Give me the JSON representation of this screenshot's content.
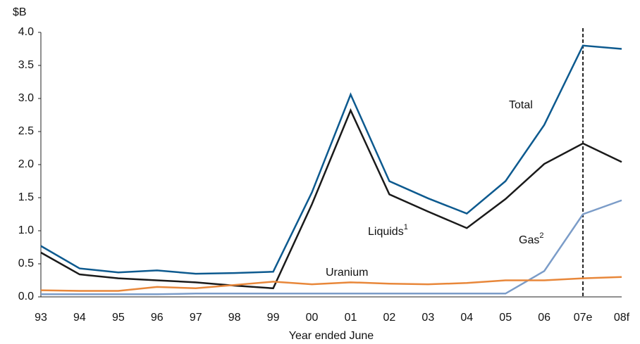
{
  "chart_data": {
    "type": "line",
    "y_unit_label": "$B",
    "x_label": "Year ended June",
    "categories": [
      "93",
      "94",
      "95",
      "96",
      "97",
      "98",
      "99",
      "00",
      "01",
      "02",
      "03",
      "04",
      "05",
      "06",
      "07e",
      "08f"
    ],
    "ylim": [
      0,
      4
    ],
    "yticks": [
      {
        "value": 0,
        "label": "0.0"
      },
      0.5,
      {
        "value": 1,
        "label": "1.0"
      },
      1.5,
      {
        "value": 2,
        "label": "2.0"
      },
      2.5,
      {
        "value": 3,
        "label": "3.0"
      },
      3.5,
      {
        "value": 4,
        "label": "4.0"
      }
    ],
    "vline_category": "07e",
    "series": [
      {
        "name": "Total",
        "color": "#0d5a8f",
        "values": [
          0.77,
          0.43,
          0.37,
          0.4,
          0.35,
          0.36,
          0.38,
          1.58,
          3.06,
          1.75,
          1.49,
          1.26,
          1.75,
          2.6,
          3.8,
          3.75
        ]
      },
      {
        "name": "Liquids",
        "footnote": "1",
        "color": "#1a1a1a",
        "values": [
          0.67,
          0.34,
          0.28,
          0.25,
          0.22,
          0.17,
          0.13,
          1.4,
          2.82,
          1.55,
          1.29,
          1.04,
          1.48,
          2.01,
          2.32,
          2.04
        ]
      },
      {
        "name": "Gas",
        "footnote": "2",
        "color": "#7b9cc8",
        "values": [
          0.04,
          0.04,
          0.04,
          0.04,
          0.05,
          0.05,
          0.05,
          0.05,
          0.05,
          0.05,
          0.05,
          0.05,
          0.05,
          0.39,
          1.25,
          1.46
        ]
      },
      {
        "name": "Uranium",
        "color": "#e8873a",
        "values": [
          0.1,
          0.09,
          0.09,
          0.15,
          0.13,
          0.18,
          0.23,
          0.19,
          0.22,
          0.2,
          0.19,
          0.21,
          0.25,
          0.25,
          0.28,
          0.3
        ]
      }
    ]
  }
}
